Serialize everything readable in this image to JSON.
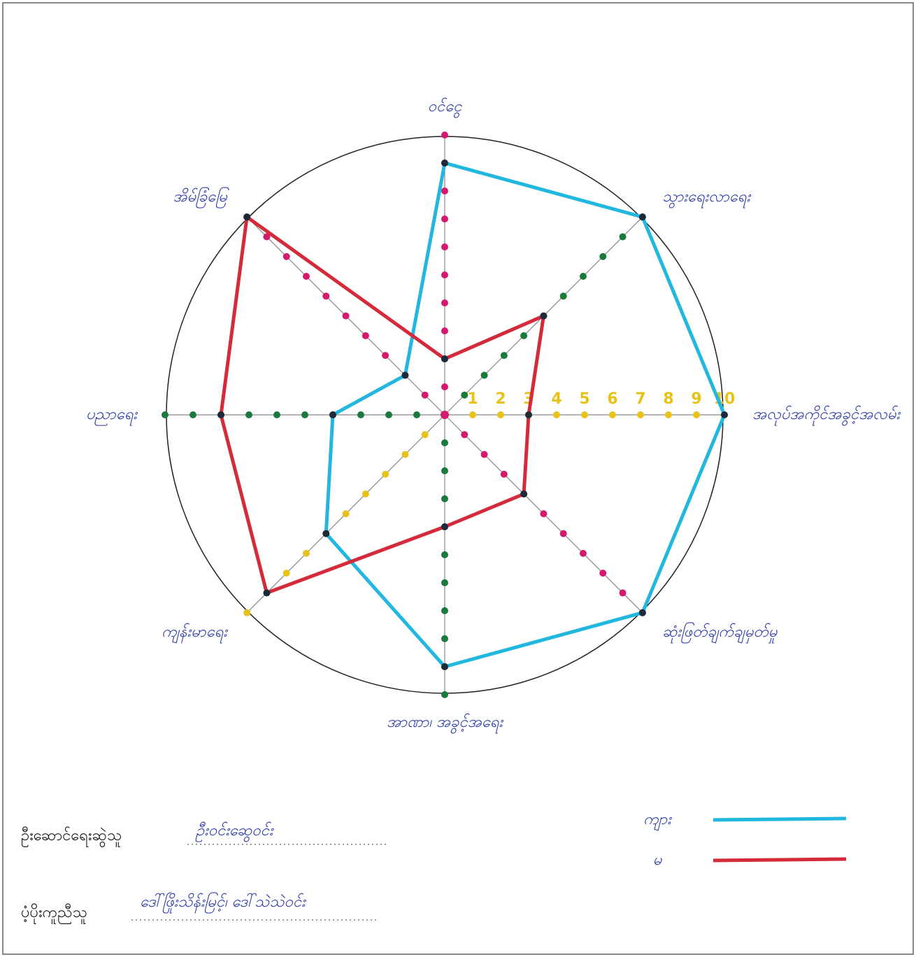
{
  "chart_data": {
    "type": "radar",
    "categories": [
      "ဝင်ငွေ",
      "သွားရေးလာရေး",
      "အလုပ်အကိုင်အခွင့်အလမ်း",
      "ဆုံးဖြတ်ချက်ချမှတ်မှု",
      "အာဏာ၊ အခွင့်အရေး",
      "ကျန်းမာရေး",
      "ပညာရေး",
      "အိမ်ခြံမြေ"
    ],
    "series": [
      {
        "name": "ကျား",
        "color": "#22b7de",
        "values": [
          9,
          10,
          10,
          10,
          9,
          6,
          4,
          2
        ]
      },
      {
        "name": "မ",
        "color": "#d42a3a",
        "values": [
          2,
          5,
          3,
          4,
          4,
          9,
          8,
          10
        ]
      }
    ],
    "rlim": [
      0,
      10
    ],
    "rticks": [
      1,
      2,
      3,
      4,
      5,
      6,
      7,
      8,
      9,
      10
    ],
    "axis_colors": [
      "#d41a6e",
      "#1a7a3a",
      "#e8c21a",
      "#d41a6e",
      "#1a7a3a",
      "#e8c21a",
      "#1a7a3a",
      "#d41a6e"
    ]
  },
  "footer": {
    "lead_label": "ဦးဆောင်ရေးဆွဲသူ",
    "lead_name": "ဦးဝင်းဆွေဝင်း",
    "support_label": "ပံ့ပိုးကူညီသူ",
    "support_name": "ဒေါ်ဖြိုးသိန်းမြင့်၊ ဒေါ်သဲသဲဝင်း"
  }
}
